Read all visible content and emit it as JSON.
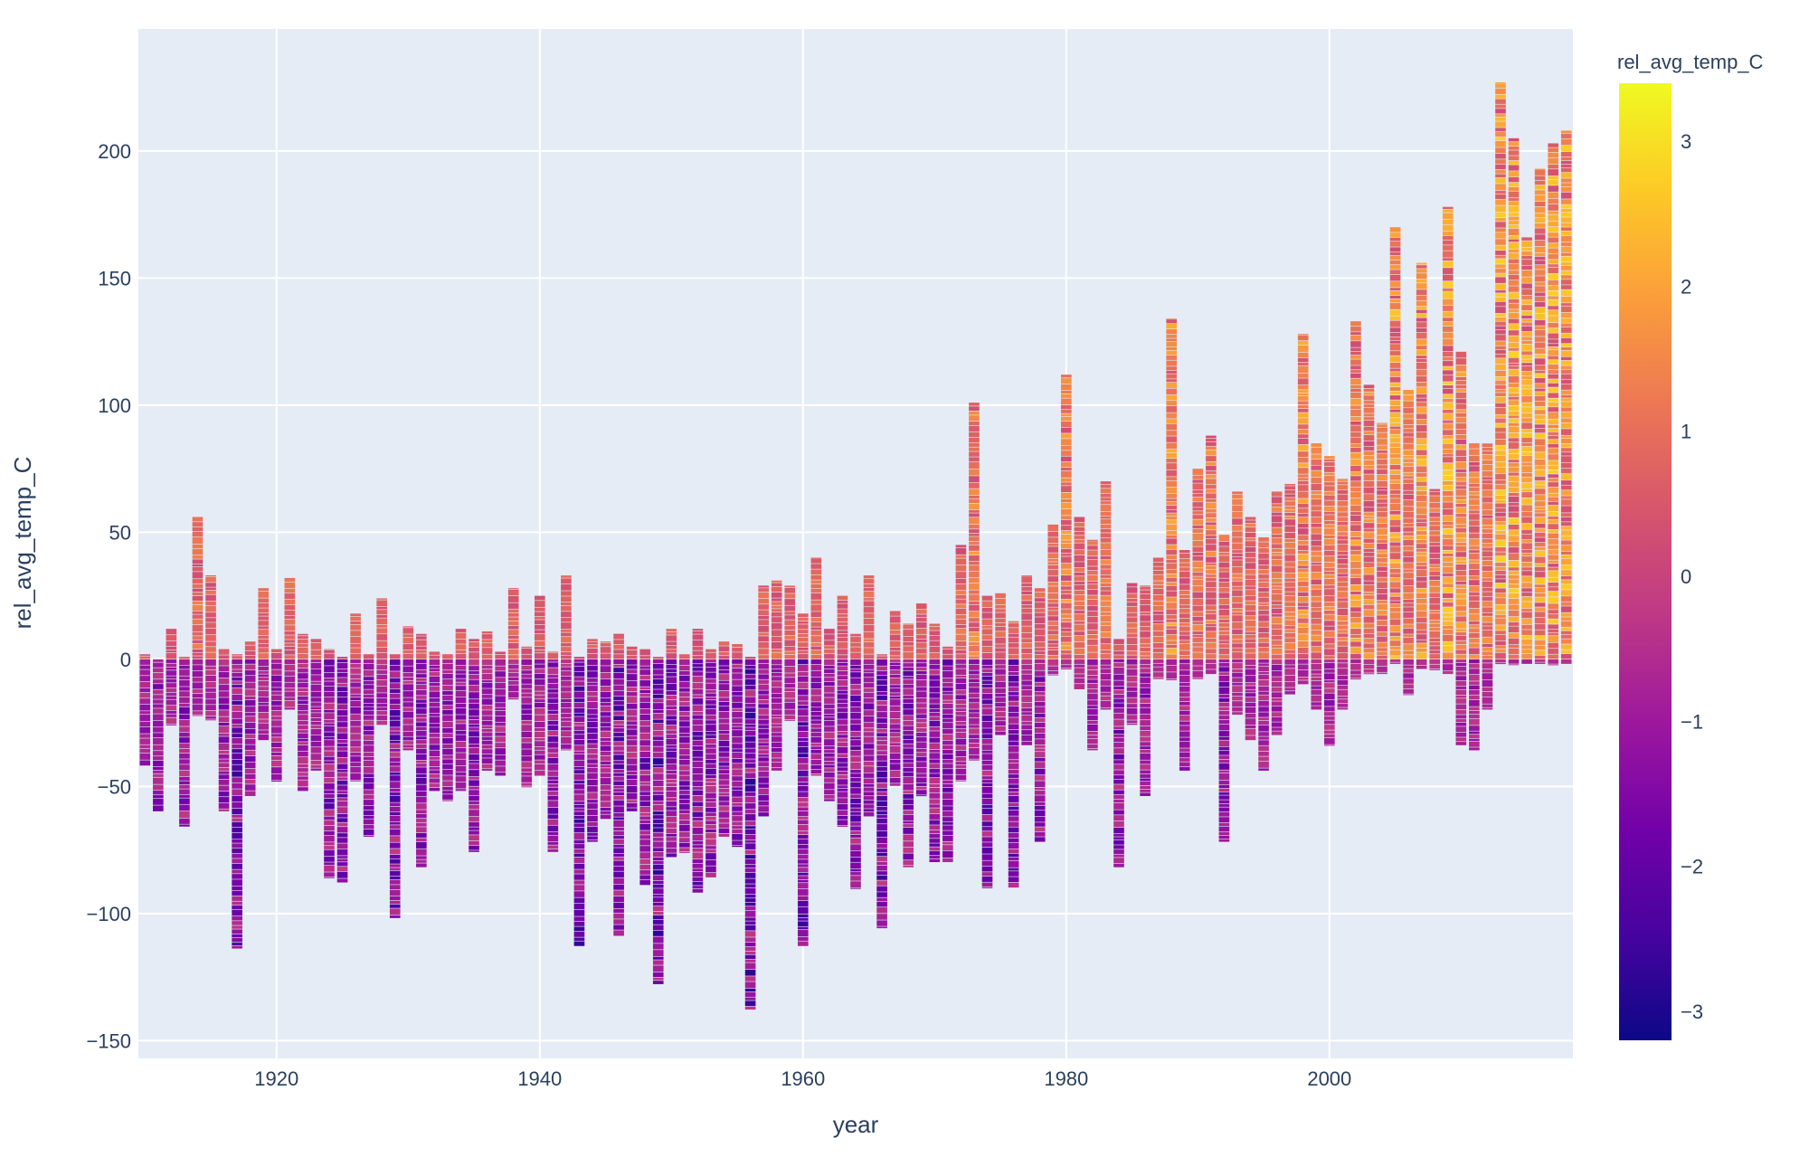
{
  "chart_data": {
    "type": "bar",
    "subtype": "stacked bar of individual daily/monthly values, colored by value",
    "xlabel": "year",
    "ylabel": "rel_avg_temp_C",
    "x_range": [
      1909.5,
      2018.5
    ],
    "ylim": [
      -157,
      248
    ],
    "x_ticks": [
      1920,
      1940,
      1960,
      1980,
      2000
    ],
    "y_ticks": [
      -150,
      -100,
      -50,
      0,
      50,
      100,
      150,
      200
    ],
    "grid": true,
    "legend": "none",
    "colorbar": {
      "title": "rel_avg_temp_C",
      "range": [
        -3.2,
        3.4
      ],
      "ticks": [
        3,
        2,
        1,
        0,
        -1,
        -2,
        -3
      ],
      "colorscale": [
        "#0d0887",
        "#46039f",
        "#7201a8",
        "#9c179e",
        "#bd3786",
        "#d8576b",
        "#ed7953",
        "#fb9f3a",
        "#fdca26",
        "#f0f921"
      ]
    },
    "series": [
      {
        "years": [
          1910,
          1911,
          1912,
          1913,
          1914,
          1915,
          1916,
          1917,
          1918,
          1919,
          1920,
          1921,
          1922,
          1923,
          1924,
          1925,
          1926,
          1927,
          1928,
          1929,
          1930,
          1931,
          1932,
          1933,
          1934,
          1935,
          1936,
          1937,
          1938,
          1939,
          1940,
          1941,
          1942,
          1943,
          1944,
          1945,
          1946,
          1947,
          1948,
          1949,
          1950,
          1951,
          1952,
          1953,
          1954,
          1955,
          1956,
          1957,
          1958,
          1959,
          1960,
          1961,
          1962,
          1963,
          1964,
          1965,
          1966,
          1967,
          1968,
          1969,
          1970,
          1971,
          1972,
          1973,
          1974,
          1975,
          1976,
          1977,
          1978,
          1979,
          1980,
          1981,
          1982,
          1983,
          1984,
          1985,
          1986,
          1987,
          1988,
          1989,
          1990,
          1991,
          1992,
          1993,
          1994,
          1995,
          1996,
          1997,
          1998,
          1999,
          2000,
          2001,
          2002,
          2003,
          2004,
          2005,
          2006,
          2007,
          2008,
          2009,
          2010,
          2011,
          2012,
          2013,
          2014,
          2015,
          2016,
          2017,
          2018
        ],
        "positive_total": [
          2,
          0,
          12,
          1,
          56,
          33,
          4,
          2,
          7,
          28,
          4,
          32,
          10,
          8,
          4,
          1,
          18,
          2,
          24,
          2,
          13,
          10,
          3,
          2,
          12,
          8,
          11,
          3,
          28,
          5,
          25,
          3,
          33,
          1,
          8,
          7,
          10,
          5,
          4,
          1,
          12,
          2,
          12,
          4,
          7,
          6,
          1,
          29,
          31,
          29,
          18,
          40,
          12,
          25,
          10,
          33,
          2,
          19,
          14,
          22,
          14,
          5,
          45,
          101,
          25,
          26,
          15,
          33,
          28,
          53,
          112,
          56,
          47,
          70,
          8,
          30,
          29,
          40,
          134,
          43,
          75,
          88,
          49,
          66,
          56,
          48,
          66,
          69,
          128,
          85,
          80,
          71,
          133,
          108,
          93,
          170,
          106,
          156,
          67,
          178,
          121,
          85,
          85,
          227,
          205,
          166,
          193,
          203,
          208
        ],
        "negative_total": [
          -42,
          -60,
          -26,
          -66,
          -22,
          -24,
          -60,
          -114,
          -54,
          -32,
          -48,
          -20,
          -52,
          -44,
          -86,
          -88,
          -48,
          -70,
          -26,
          -102,
          -36,
          -82,
          -52,
          -56,
          -52,
          -76,
          -44,
          -46,
          -16,
          -50,
          -46,
          -76,
          -36,
          -113,
          -72,
          -63,
          -109,
          -60,
          -89,
          -128,
          -78,
          -76,
          -92,
          -86,
          -70,
          -74,
          -138,
          -62,
          -44,
          -24,
          -113,
          -46,
          -56,
          -66,
          -90,
          -62,
          -106,
          -50,
          -82,
          -54,
          -80,
          -80,
          -48,
          -40,
          -90,
          -30,
          -90,
          -34,
          -72,
          -6,
          -4,
          -12,
          -36,
          -20,
          -82,
          -26,
          -54,
          -8,
          -8,
          -44,
          -8,
          -6,
          -72,
          -22,
          -32,
          -44,
          -30,
          -14,
          -10,
          -20,
          -34,
          -20,
          -8,
          -6,
          -6,
          -2,
          -14,
          -4,
          -4,
          -6,
          -34,
          -36,
          -20,
          -2,
          -2,
          -2,
          -2,
          -2,
          -2
        ]
      }
    ]
  }
}
